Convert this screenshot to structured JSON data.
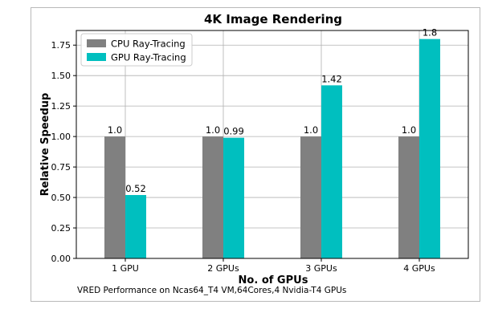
{
  "chart_data": {
    "type": "bar",
    "title": "4K Image Rendering",
    "xlabel": "No. of GPUs",
    "ylabel": "Relative Speedup",
    "categories": [
      "1 GPU",
      "2 GPUs",
      "3 GPUs",
      "4 GPUs"
    ],
    "series": [
      {
        "name": "CPU Ray-Tracing",
        "values": [
          1.0,
          1.0,
          1.0,
          1.0
        ],
        "labels": [
          "1.0",
          "1.0",
          "1.0",
          "1.0"
        ],
        "color": "#808080"
      },
      {
        "name": "GPU Ray-Tracing",
        "values": [
          0.52,
          0.99,
          1.42,
          1.8
        ],
        "labels": [
          "0.52",
          "0.99",
          "1.42",
          "1.8"
        ],
        "color": "#00bfbf"
      }
    ],
    "ylim": [
      0,
      1.87
    ],
    "yticks": [
      0.0,
      0.25,
      0.5,
      0.75,
      1.0,
      1.25,
      1.5,
      1.75
    ],
    "ytick_labels": [
      "0.00",
      "0.25",
      "0.50",
      "0.75",
      "1.00",
      "1.25",
      "1.50",
      "1.75"
    ],
    "grid": true,
    "legend_position": "top-left"
  },
  "caption": "VRED Performance on Ncas64_T4 VM,64Cores,4 Nvidia-T4 GPUs"
}
